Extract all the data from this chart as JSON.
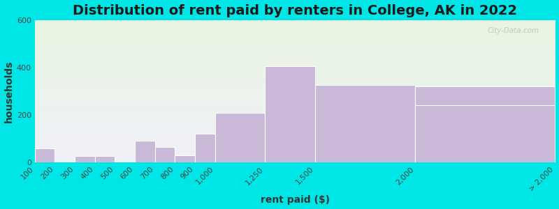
{
  "title": "Distribution of rent paid by renters in College, AK in 2022",
  "xlabel": "rent paid ($)",
  "ylabel": "households",
  "bin_edges": [
    100,
    200,
    300,
    400,
    500,
    600,
    700,
    800,
    900,
    1000,
    1250,
    1500,
    2000,
    2500
  ],
  "tick_positions": [
    100,
    200,
    300,
    400,
    500,
    600,
    700,
    800,
    900,
    1000,
    1250,
    1500,
    2000,
    2500
  ],
  "tick_labels": [
    "100",
    "200",
    "300",
    "400",
    "500",
    "600",
    "700",
    "800",
    "900",
    "1,000",
    "1,250",
    "1,500",
    "2,000",
    "> 2,000"
  ],
  "values": [
    60,
    0,
    25,
    25,
    0,
    90,
    65,
    30,
    120,
    210,
    405,
    325,
    320,
    240
  ],
  "bar_color": "#c9b8d8",
  "bar_edge_color": "#ffffff",
  "ylim": [
    0,
    600
  ],
  "yticks": [
    0,
    200,
    400,
    600
  ],
  "xlim": [
    100,
    2700
  ],
  "background_outer": "#00e5e5",
  "background_grad_top": "#e8f5e0",
  "background_grad_bottom": "#f0f0f8",
  "title_fontsize": 14,
  "axis_label_fontsize": 10,
  "tick_fontsize": 8,
  "watermark_text": "City-Data.com"
}
